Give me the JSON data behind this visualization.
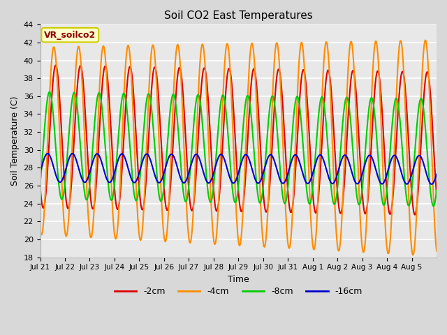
{
  "title": "Soil CO2 East Temperatures",
  "xlabel": "Time",
  "ylabel": "Soil Temperature (C)",
  "ylim": [
    18,
    44
  ],
  "yticks": [
    18,
    20,
    22,
    24,
    26,
    28,
    30,
    32,
    34,
    36,
    38,
    40,
    42,
    44
  ],
  "legend_label": "VR_soilco2",
  "series": {
    "-2cm": {
      "color": "#dd0000",
      "lw": 1.5
    },
    "-4cm": {
      "color": "#ff8c00",
      "lw": 1.5
    },
    "-8cm": {
      "color": "#00cc00",
      "lw": 1.5
    },
    "-16cm": {
      "color": "#0000cc",
      "lw": 1.5
    }
  },
  "bg_color": "#d8d8d8",
  "plot_bg": "#e8e8e8",
  "grid_color": "#ffffff",
  "annotation_bg": "#ffffcc",
  "annotation_border": "#cccc00",
  "tick_labels": [
    "Jul 21",
    "Jul 22",
    "Jul 23",
    "Jul 24",
    "Jul 25",
    "Jul 26",
    "Jul 27",
    "Jul 28",
    "Jul 29",
    "Jul 30",
    "Jul 31",
    "Aug 1",
    "Aug 2",
    "Aug 3",
    "Aug 4",
    "Aug 5"
  ]
}
